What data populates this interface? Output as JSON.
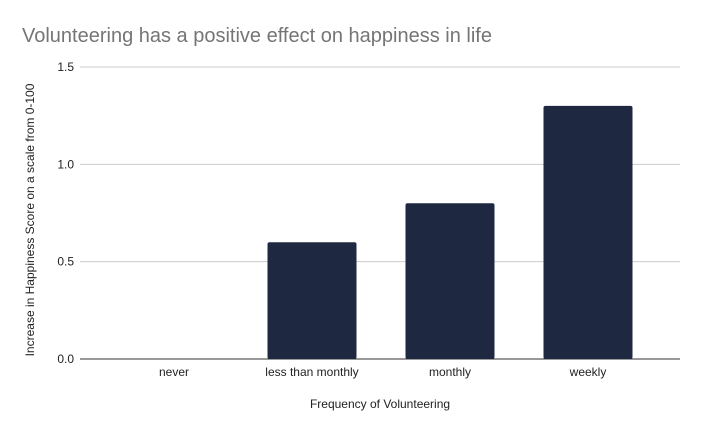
{
  "chart_data": {
    "type": "bar",
    "title": "Volunteering has a positive effect on happiness in life",
    "xlabel": "Frequency of Volunteering",
    "ylabel": "Increase in Happiness Score on a scale from 0-100",
    "categories": [
      "never",
      "less than monthly",
      "monthly",
      "weekly"
    ],
    "values": [
      0,
      0.6,
      0.8,
      1.3
    ],
    "ylim": [
      0,
      1.5
    ],
    "yticks": [
      "0.0",
      "0.5",
      "1.0",
      "1.5"
    ],
    "grid": true,
    "legend": "none",
    "bar_color": "#1f2841"
  }
}
